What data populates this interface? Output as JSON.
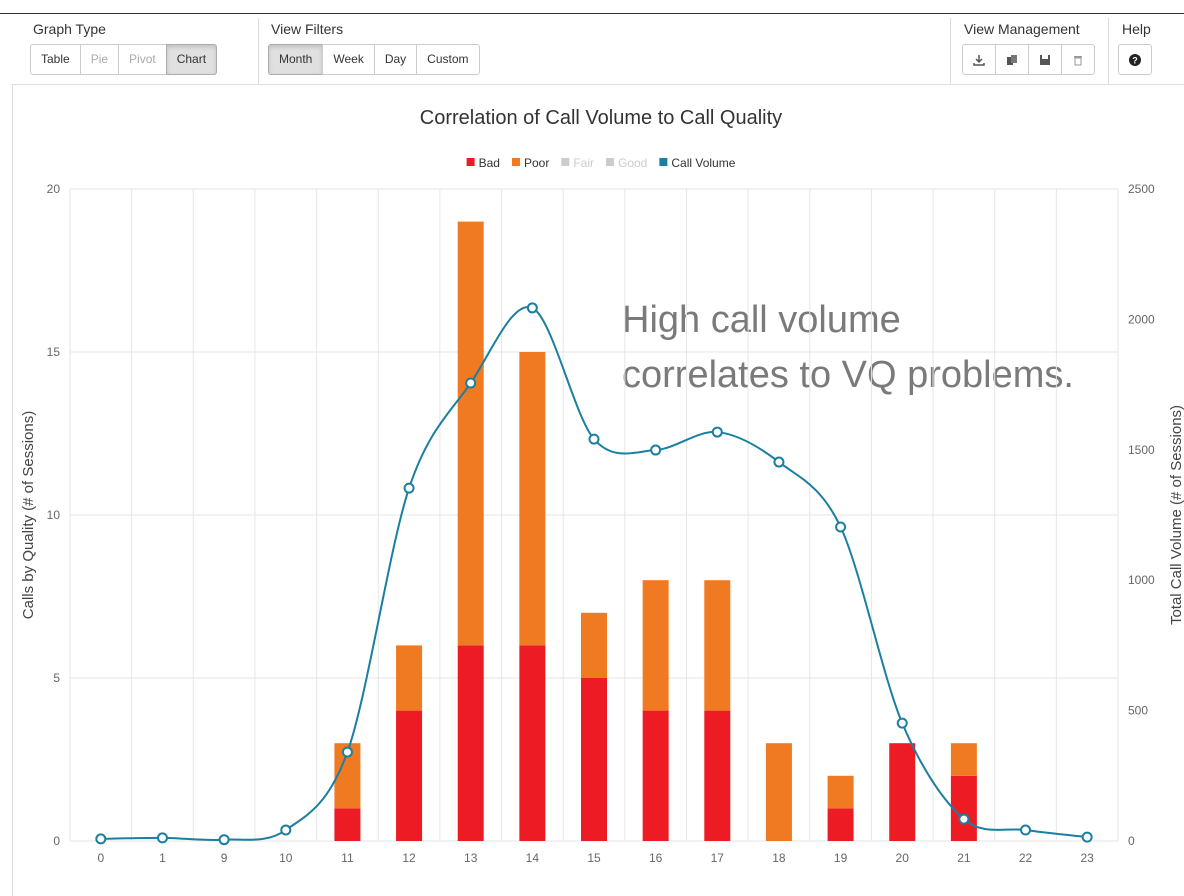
{
  "toolbar": {
    "groups": [
      {
        "label": "Graph Type",
        "buttons": [
          {
            "label": "Table",
            "active": false,
            "disabled": false
          },
          {
            "label": "Pie",
            "active": false,
            "disabled": true
          },
          {
            "label": "Pivot",
            "active": false,
            "disabled": true
          },
          {
            "label": "Chart",
            "active": true,
            "disabled": false
          }
        ]
      },
      {
        "label": "View Filters",
        "buttons": [
          {
            "label": "Month",
            "active": true,
            "disabled": false
          },
          {
            "label": "Week",
            "active": false,
            "disabled": false
          },
          {
            "label": "Day",
            "active": false,
            "disabled": false
          },
          {
            "label": "Custom",
            "active": false,
            "disabled": false
          }
        ]
      },
      {
        "label": "View Management"
      },
      {
        "label": "Help"
      }
    ]
  },
  "chart_data": {
    "type": "bar",
    "stacked": true,
    "title": "Correlation of Call Volume to Call Quality",
    "annotation": [
      "High call volume",
      "correlates to VQ problems."
    ],
    "categories": [
      "0",
      "1",
      "9",
      "10",
      "11",
      "12",
      "13",
      "14",
      "15",
      "16",
      "17",
      "18",
      "19",
      "20",
      "21",
      "22",
      "23"
    ],
    "series": [
      {
        "name": "Bad",
        "color": "#ed1c24",
        "values": [
          0,
          0,
          0,
          0,
          1,
          4,
          6,
          6,
          5,
          4,
          4,
          0,
          1,
          3,
          2,
          0,
          0
        ]
      },
      {
        "name": "Poor",
        "color": "#f07a22",
        "values": [
          0,
          0,
          0,
          0,
          2,
          2,
          13,
          9,
          2,
          4,
          4,
          3,
          1,
          0,
          1,
          0,
          0
        ]
      },
      {
        "name": "Fair",
        "color": "#cccccc",
        "hidden": true,
        "values": [
          null,
          null,
          null,
          null,
          null,
          null,
          null,
          null,
          null,
          null,
          null,
          null,
          null,
          null,
          null,
          null,
          null
        ]
      },
      {
        "name": "Good",
        "color": "#cccccc",
        "hidden": true,
        "values": [
          null,
          null,
          null,
          null,
          null,
          null,
          null,
          null,
          null,
          null,
          null,
          null,
          null,
          null,
          null,
          null,
          null
        ]
      },
      {
        "name": "Call Volume",
        "color": "#1a7fa0",
        "type": "line",
        "axis": "y2",
        "values": [
          8,
          12,
          5,
          42,
          341,
          1353,
          1756,
          2044,
          1541,
          1499,
          1568,
          1453,
          1204,
          452,
          84,
          42,
          15
        ]
      }
    ],
    "ylabel": "Calls by Quality (# of Sessions)",
    "y2label": "Total Call Volume (# of Sessions)",
    "ylim": [
      0,
      20
    ],
    "yticks": [
      0,
      5,
      10,
      15,
      20
    ],
    "y2lim": [
      0,
      2500
    ],
    "y2ticks": [
      0,
      500,
      1000,
      1500,
      2000,
      2500
    ],
    "grid": true
  }
}
